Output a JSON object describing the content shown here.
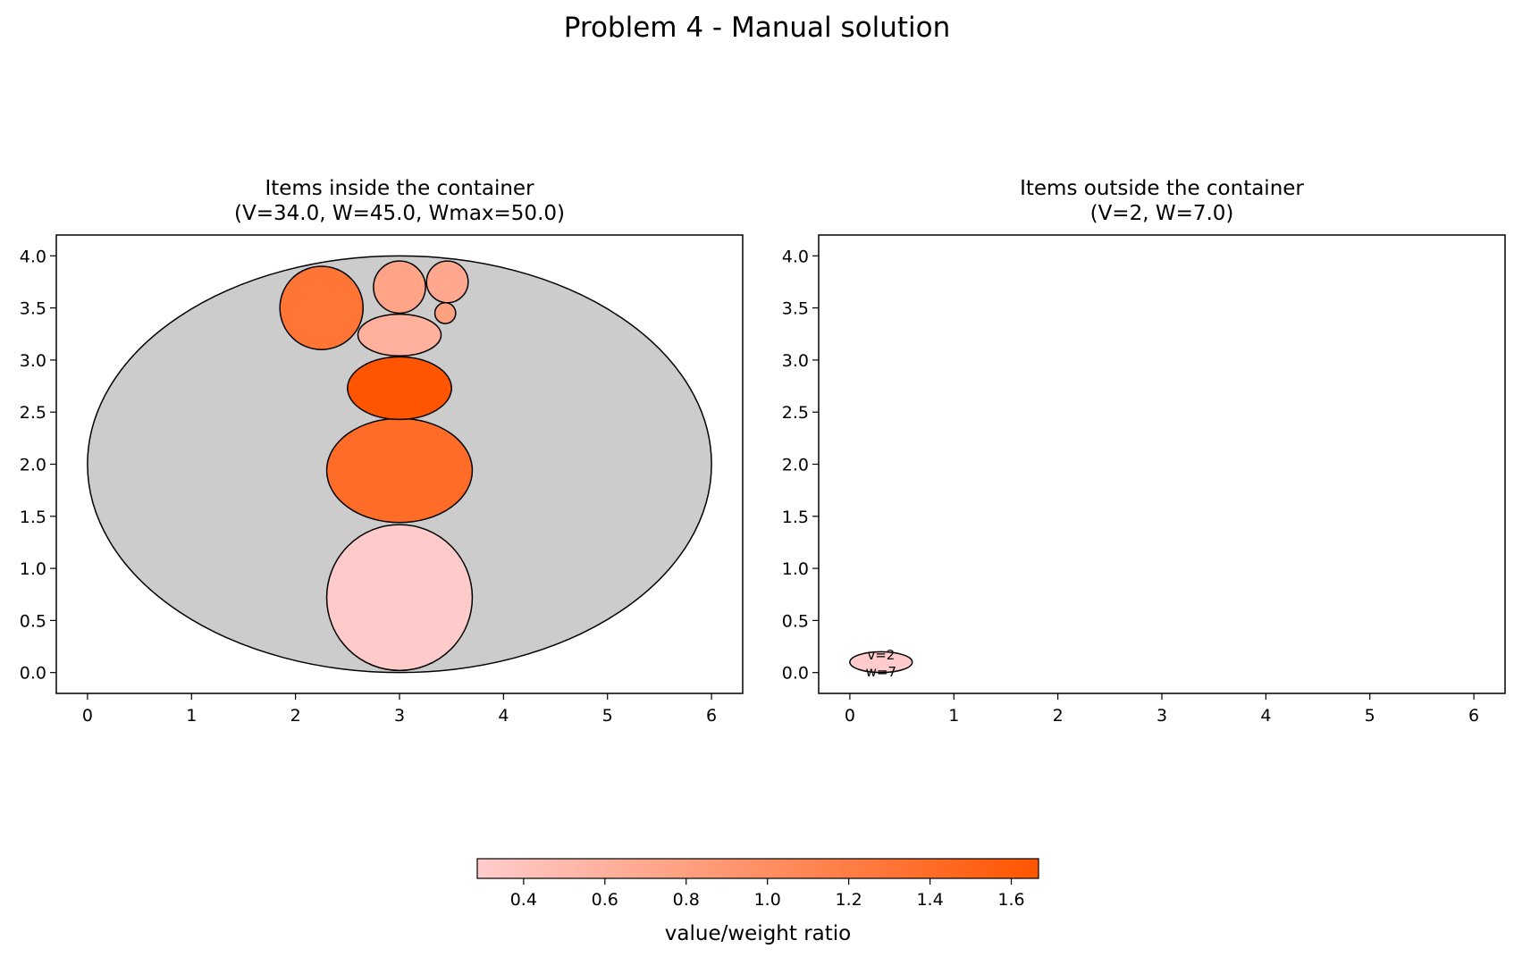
{
  "figure_title": "Problem 4 - Manual solution",
  "chart_data": [
    {
      "type": "scatter",
      "title": "Items inside the container",
      "subtitle": "(V=34.0, W=45.0, Wmax=50.0)",
      "xlim": [
        -0.3,
        6.3
      ],
      "ylim": [
        -0.2,
        4.2
      ],
      "xticks": [
        "0",
        "1",
        "2",
        "3",
        "4",
        "5",
        "6"
      ],
      "yticks": [
        "0.0",
        "0.5",
        "1.0",
        "1.5",
        "2.0",
        "2.5",
        "3.0",
        "3.5",
        "4.0"
      ],
      "grid": false,
      "container": {
        "cx": 3.0,
        "cy": 2.0,
        "rx": 3.0,
        "ry": 2.0,
        "color": "#cccccc"
      },
      "items": [
        {
          "cx": 3.0,
          "cy": 0.72,
          "rx": 0.7,
          "ry": 0.7,
          "ratio": 0.3
        },
        {
          "cx": 3.0,
          "cy": 1.94,
          "rx": 0.7,
          "ry": 0.5,
          "ratio": 1.4
        },
        {
          "cx": 3.0,
          "cy": 2.73,
          "rx": 0.5,
          "ry": 0.3,
          "ratio": 1.67
        },
        {
          "cx": 3.0,
          "cy": 3.24,
          "rx": 0.4,
          "ry": 0.2,
          "ratio": 0.6
        },
        {
          "cx": 2.25,
          "cy": 3.5,
          "rx": 0.4,
          "ry": 0.4,
          "ratio": 1.3
        },
        {
          "cx": 3.0,
          "cy": 3.7,
          "rx": 0.25,
          "ry": 0.25,
          "ratio": 0.75
        },
        {
          "cx": 3.46,
          "cy": 3.75,
          "rx": 0.2,
          "ry": 0.2,
          "ratio": 0.7
        },
        {
          "cx": 3.44,
          "cy": 3.45,
          "rx": 0.1,
          "ry": 0.1,
          "ratio": 0.8
        }
      ]
    },
    {
      "type": "scatter",
      "title": "Items outside the container",
      "subtitle": "(V=2, W=7.0)",
      "xlim": [
        -0.3,
        6.3
      ],
      "ylim": [
        -0.2,
        4.2
      ],
      "xticks": [
        "0",
        "1",
        "2",
        "3",
        "4",
        "5",
        "6"
      ],
      "yticks": [
        "0.0",
        "0.5",
        "1.0",
        "1.5",
        "2.0",
        "2.5",
        "3.0",
        "3.5",
        "4.0"
      ],
      "grid": false,
      "items": [
        {
          "cx": 0.3,
          "cy": 0.1,
          "rx": 0.3,
          "ry": 0.1,
          "ratio": 0.29,
          "label_v": "v=2",
          "label_w": "w=7"
        }
      ]
    }
  ],
  "colorbar": {
    "label": "value/weight ratio",
    "vmin": 0.286,
    "vmax": 1.667,
    "ticks": [
      "0.4",
      "0.6",
      "0.8",
      "1.0",
      "1.2",
      "1.4",
      "1.6"
    ],
    "color_low": "#ffcccc",
    "color_high": "#ff5500"
  }
}
